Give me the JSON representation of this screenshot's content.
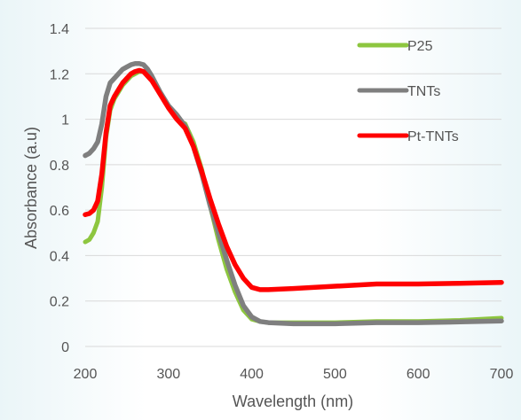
{
  "chart_data": {
    "type": "line",
    "title": "",
    "xlabel": "Wavelength (nm)",
    "ylabel": "Absorbance (a.u)",
    "xlim": [
      200,
      700
    ],
    "ylim": [
      0,
      1.4
    ],
    "x_ticks": [
      "200",
      "300",
      "400",
      "500",
      "600",
      "700"
    ],
    "y_ticks": [
      "0",
      "0.2",
      "0.4",
      "0.6",
      "0.8",
      "1",
      "1.2",
      "1.4"
    ],
    "grid": true,
    "legend_position": "top-right",
    "series": [
      {
        "name": "P25",
        "color": "#8dc63f",
        "x": [
          200,
          205,
          210,
          215,
          220,
          225,
          230,
          235,
          240,
          245,
          250,
          255,
          260,
          265,
          270,
          275,
          280,
          290,
          300,
          310,
          320,
          330,
          340,
          350,
          360,
          370,
          380,
          390,
          400,
          410,
          420,
          450,
          500,
          550,
          600,
          650,
          700
        ],
        "y": [
          0.46,
          0.47,
          0.5,
          0.55,
          0.7,
          0.92,
          1.04,
          1.09,
          1.12,
          1.15,
          1.17,
          1.19,
          1.2,
          1.21,
          1.21,
          1.2,
          1.18,
          1.12,
          1.05,
          1.0,
          0.98,
          0.9,
          0.78,
          0.62,
          0.47,
          0.34,
          0.24,
          0.16,
          0.12,
          0.11,
          0.105,
          0.105,
          0.105,
          0.11,
          0.11,
          0.115,
          0.125
        ]
      },
      {
        "name": "TNTs",
        "color": "#7f7f7f",
        "x": [
          200,
          205,
          210,
          215,
          220,
          225,
          230,
          235,
          240,
          245,
          250,
          255,
          260,
          265,
          270,
          275,
          280,
          290,
          300,
          310,
          320,
          330,
          340,
          350,
          360,
          370,
          380,
          390,
          400,
          410,
          420,
          450,
          500,
          550,
          600,
          650,
          700
        ],
        "y": [
          0.84,
          0.85,
          0.87,
          0.9,
          0.98,
          1.1,
          1.16,
          1.18,
          1.2,
          1.22,
          1.23,
          1.24,
          1.245,
          1.245,
          1.24,
          1.22,
          1.19,
          1.12,
          1.06,
          1.02,
          0.97,
          0.88,
          0.76,
          0.62,
          0.5,
          0.38,
          0.27,
          0.18,
          0.13,
          0.11,
          0.105,
          0.1,
          0.1,
          0.105,
          0.105,
          0.108,
          0.112
        ]
      },
      {
        "name": "Pt-TNTs",
        "color": "#ff0000",
        "x": [
          200,
          205,
          210,
          215,
          220,
          225,
          230,
          235,
          240,
          245,
          250,
          255,
          260,
          265,
          270,
          275,
          280,
          290,
          300,
          310,
          320,
          330,
          340,
          350,
          360,
          370,
          380,
          390,
          400,
          410,
          420,
          450,
          500,
          550,
          600,
          650,
          700
        ],
        "y": [
          0.58,
          0.585,
          0.6,
          0.64,
          0.76,
          0.94,
          1.06,
          1.1,
          1.13,
          1.16,
          1.18,
          1.2,
          1.21,
          1.215,
          1.21,
          1.19,
          1.17,
          1.11,
          1.05,
          1.0,
          0.96,
          0.88,
          0.77,
          0.65,
          0.54,
          0.44,
          0.36,
          0.3,
          0.26,
          0.25,
          0.25,
          0.255,
          0.265,
          0.275,
          0.275,
          0.278,
          0.282
        ]
      }
    ]
  }
}
